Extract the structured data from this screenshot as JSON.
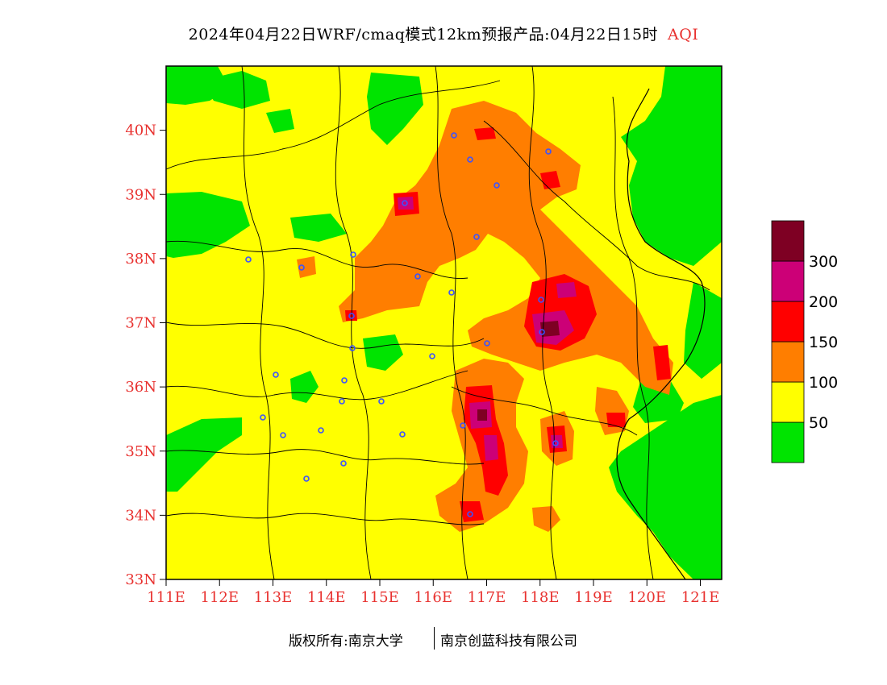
{
  "title": {
    "main": "2024年04月22日WRF/cmaq模式12km预报产品:04月22日15时",
    "variable": "AQI"
  },
  "map": {
    "lon_range": [
      111,
      121.4
    ],
    "lat_range": [
      33,
      41
    ],
    "lon_ticks": [
      "111E",
      "112E",
      "113E",
      "114E",
      "115E",
      "116E",
      "117E",
      "118E",
      "119E",
      "120E",
      "121E"
    ],
    "lat_ticks": [
      "33N",
      "34N",
      "35N",
      "36N",
      "37N",
      "38N",
      "39N",
      "40N"
    ]
  },
  "legend": {
    "labels": [
      "50",
      "100",
      "150",
      "200",
      "300"
    ],
    "colors": [
      "#00e400",
      "#ffff00",
      "#ff7e00",
      "#ff0000",
      "#cc0077",
      "#7e0023"
    ]
  },
  "footer": {
    "copyright": "版权所有:南京大学",
    "company": "南京创蓝科技有限公司"
  }
}
